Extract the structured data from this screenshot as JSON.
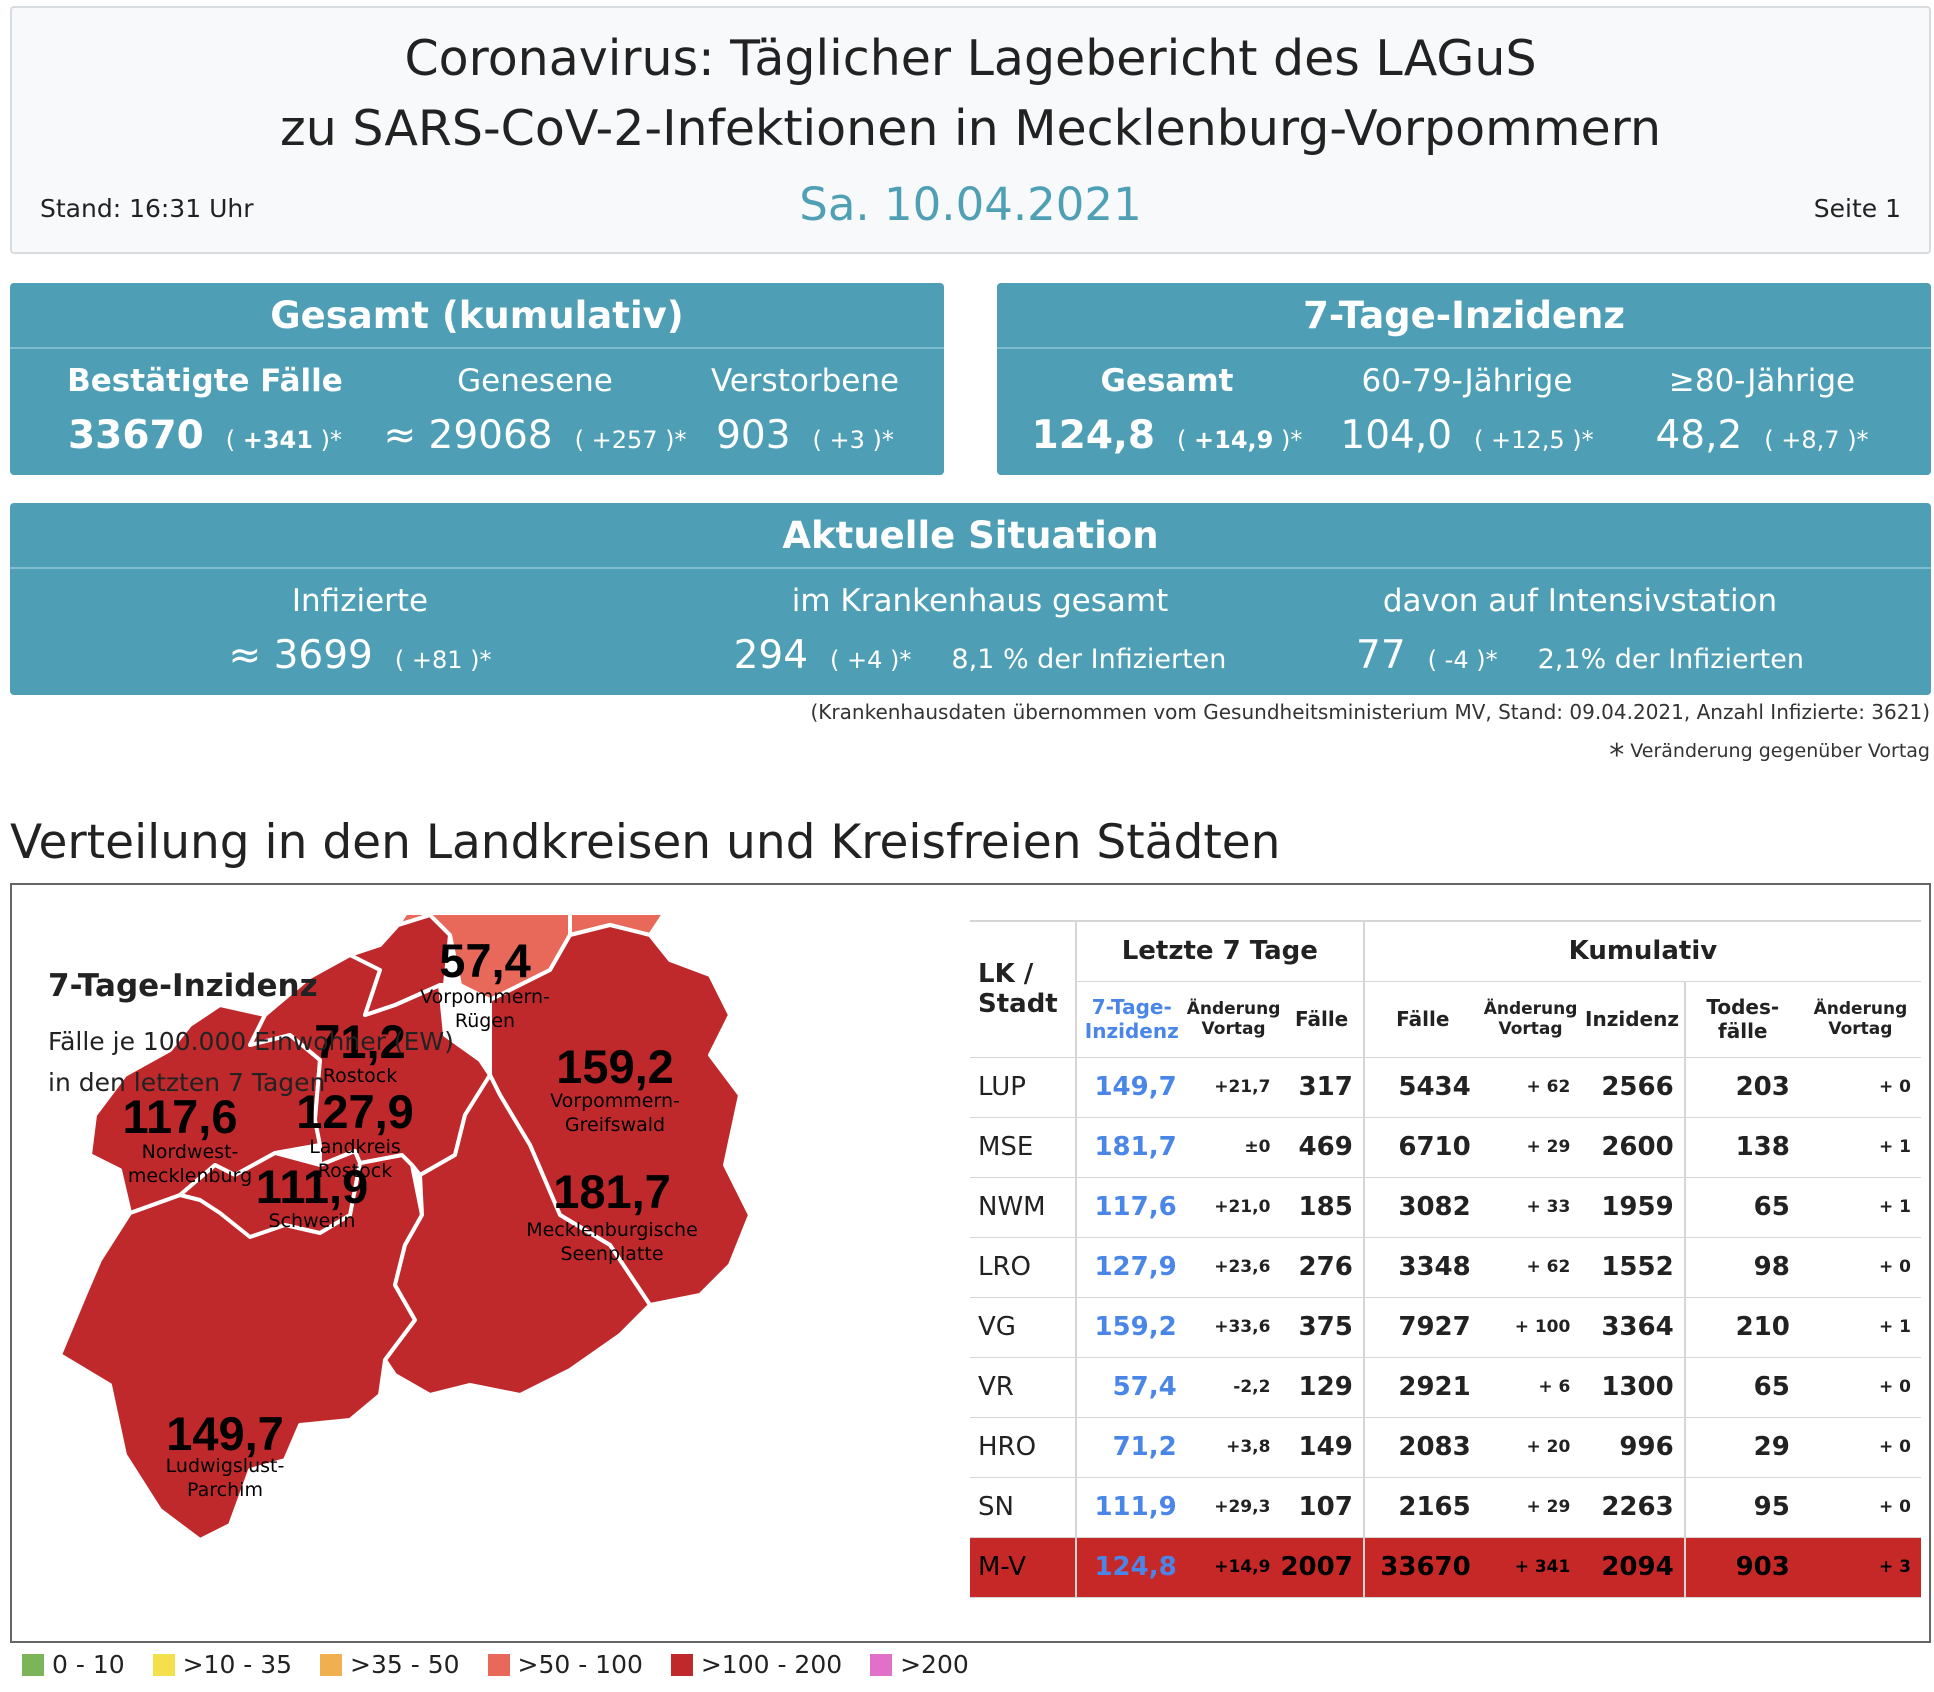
{
  "header": {
    "title_line1": "Coronavirus: Täglicher Lagebericht des LAGuS",
    "title_line2": "zu SARS-CoV-2-Infektionen in Mecklenburg-Vorpommern",
    "date": "Sa. 10.04.2021",
    "stand": "Stand: 16:31 Uhr",
    "seite": "Seite 1"
  },
  "gesamt": {
    "title": "Gesamt (kumulativ)",
    "items": [
      {
        "label": "Bestätigte Fälle",
        "prefix": "",
        "value": "33670",
        "delta_open": "( ",
        "delta": "+341",
        "delta_close": " )*"
      },
      {
        "label": "Genesene",
        "prefix": "≈ ",
        "value": "29068",
        "delta_open": "( ",
        "delta": "+257",
        "delta_close": " )*"
      },
      {
        "label": "Verstorbene",
        "prefix": "",
        "value": "903",
        "delta_open": "( ",
        "delta": "+3",
        "delta_close": " )*"
      }
    ]
  },
  "inzidenz": {
    "title": "7-Tage-Inzidenz",
    "items": [
      {
        "label": "Gesamt",
        "value": "124,8",
        "delta_open": "( ",
        "delta": "+14,9",
        "delta_close": " )*"
      },
      {
        "label": "60-79-Jährige",
        "value": "104,0",
        "delta_open": "( ",
        "delta": "+12,5",
        "delta_close": " )*"
      },
      {
        "label": "≥80-Jährige",
        "value": "48,2",
        "delta_open": "( ",
        "delta": "+8,7",
        "delta_close": " )*"
      }
    ]
  },
  "situation": {
    "title": "Aktuelle Situation",
    "items": [
      {
        "label": "Infizierte",
        "prefix": "≈ ",
        "value": "3699",
        "delta_open": "( ",
        "delta": "+81",
        "delta_close": " )*",
        "extra": ""
      },
      {
        "label": "im Krankenhaus gesamt",
        "prefix": "",
        "value": "294",
        "delta_open": "( ",
        "delta": "+4",
        "delta_close": " )*",
        "extra": "8,1 % der Infizierten"
      },
      {
        "label": "davon auf Intensivstation",
        "prefix": "",
        "value": "77",
        "delta_open": "( ",
        "delta": "-4",
        "delta_close": " )*",
        "extra": "2,1% der Infizierten"
      }
    ],
    "note": "(Krankenhausdaten übernommen vom Gesundheitsministerium MV, Stand: 09.04.2021, Anzahl Infizierte: 3621)",
    "star": "*",
    "star_note": "Veränderung gegenüber Vortag"
  },
  "section_title": "Verteilung in den Landkreisen und Kreisfreien Städten",
  "map": {
    "title": "7-Tage-Inzidenz",
    "subtitle1": "Fälle je 100.000 Einwohner (EW)",
    "subtitle2": "in den letzten 7 Tagen",
    "colors": {
      "red": "#c0292b",
      "salmon": "#e8695a",
      "border": "#ffffff"
    },
    "regions": [
      {
        "value": "57,4",
        "name1": "Vorpommern-",
        "name2": "Rügen"
      },
      {
        "value": "71,2",
        "name1": "Rostock",
        "name2": ""
      },
      {
        "value": "159,2",
        "name1": "Vorpommern-",
        "name2": "Greifswald"
      },
      {
        "value": "117,6",
        "name1": "Nordwest-",
        "name2": "mecklenburg"
      },
      {
        "value": "127,9",
        "name1": "Landkreis",
        "name2": "Rostock"
      },
      {
        "value": "111,9",
        "name1": "Schwerin",
        "name2": ""
      },
      {
        "value": "181,7",
        "name1": "Mecklenburgische",
        "name2": "Seenplatte"
      },
      {
        "value": "149,7",
        "name1": "Ludwigslust-",
        "name2": "Parchim"
      }
    ]
  },
  "table": {
    "headers": {
      "lk1": "LK /",
      "lk2": "Stadt",
      "group1": "Letzte 7 Tage",
      "group2": "Kumulativ",
      "inc1": "7-Tage-",
      "inc2": "Inzidenz",
      "chg1": "Änderung",
      "chg2": "Vortag",
      "faelle7": "Fälle",
      "faelle": "Fälle",
      "chgc1": "Änderung",
      "chgc2": "Vortag",
      "inzidenz": "Inzidenz",
      "todes1": "Todes-",
      "todes2": "fälle",
      "chgt1": "Änderung",
      "chgt2": "Vortag"
    },
    "rows": [
      {
        "name": "LUP",
        "inc": "149,7",
        "chg": "+21,7",
        "f7": "317",
        "f": "5434",
        "fchg": "+ 62",
        "cinc": "2566",
        "tod": "203",
        "tchg": "+ 0"
      },
      {
        "name": "MSE",
        "inc": "181,7",
        "chg": "±0",
        "f7": "469",
        "f": "6710",
        "fchg": "+ 29",
        "cinc": "2600",
        "tod": "138",
        "tchg": "+ 1"
      },
      {
        "name": "NWM",
        "inc": "117,6",
        "chg": "+21,0",
        "f7": "185",
        "f": "3082",
        "fchg": "+ 33",
        "cinc": "1959",
        "tod": "65",
        "tchg": "+ 1"
      },
      {
        "name": "LRO",
        "inc": "127,9",
        "chg": "+23,6",
        "f7": "276",
        "f": "3348",
        "fchg": "+ 62",
        "cinc": "1552",
        "tod": "98",
        "tchg": "+ 0"
      },
      {
        "name": "VG",
        "inc": "159,2",
        "chg": "+33,6",
        "f7": "375",
        "f": "7927",
        "fchg": "+ 100",
        "cinc": "3364",
        "tod": "210",
        "tchg": "+ 1"
      },
      {
        "name": "VR",
        "inc": "57,4",
        "chg": "-2,2",
        "f7": "129",
        "f": "2921",
        "fchg": "+ 6",
        "cinc": "1300",
        "tod": "65",
        "tchg": "+ 0"
      },
      {
        "name": "HRO",
        "inc": "71,2",
        "chg": "+3,8",
        "f7": "149",
        "f": "2083",
        "fchg": "+ 20",
        "cinc": "996",
        "tod": "29",
        "tchg": "+ 0"
      },
      {
        "name": "SN",
        "inc": "111,9",
        "chg": "+29,3",
        "f7": "107",
        "f": "2165",
        "fchg": "+ 29",
        "cinc": "2263",
        "tod": "95",
        "tchg": "+ 0"
      }
    ],
    "total": {
      "name": "M-V",
      "inc": "124,8",
      "chg": "+14,9",
      "f7": "2007",
      "f": "33670",
      "fchg": "+ 341",
      "cinc": "2094",
      "tod": "903",
      "tchg": "+ 3"
    }
  },
  "legend": [
    {
      "label": "0 - 10",
      "color": "#7cb45a"
    },
    {
      "label": ">10 - 35",
      "color": "#f4e04d"
    },
    {
      "label": ">35 - 50",
      "color": "#f0b050"
    },
    {
      "label": ">50 - 100",
      "color": "#e8695a"
    },
    {
      "label": ">100 - 200",
      "color": "#c0292b"
    },
    {
      "label": ">200",
      "color": "#e070c8"
    }
  ]
}
